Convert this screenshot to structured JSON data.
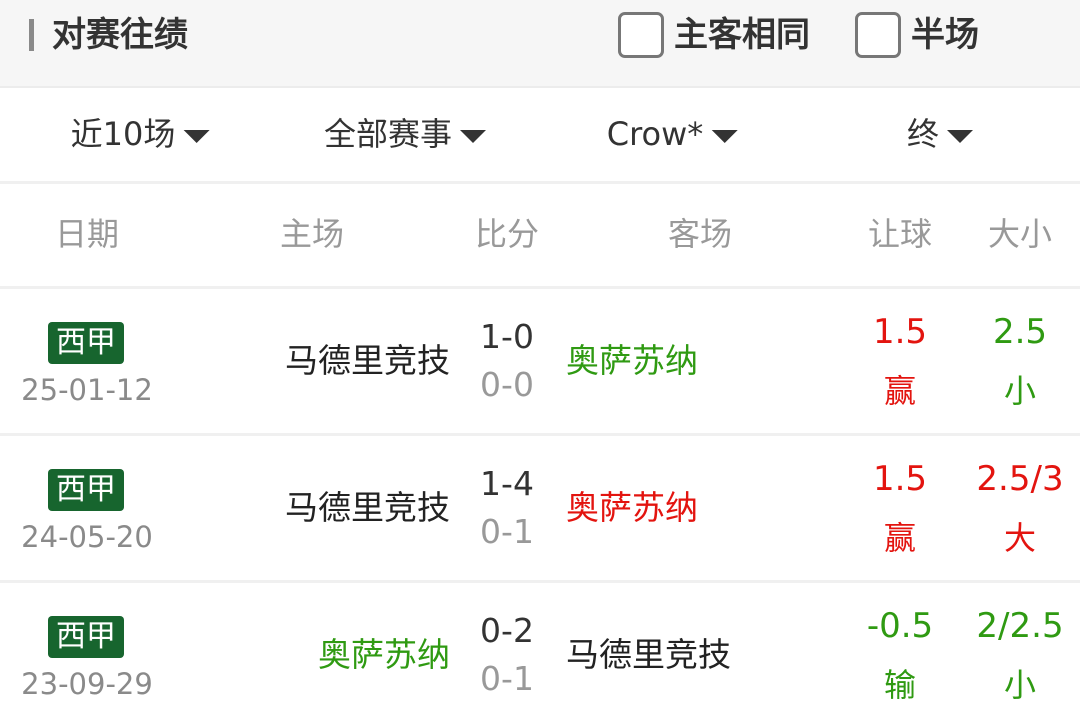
{
  "header": {
    "title": "对赛往绩",
    "options": [
      "主客相同",
      "半场"
    ]
  },
  "filters": [
    "近10场",
    "全部赛事",
    "Crow*",
    "终"
  ],
  "columns": [
    "日期",
    "主场",
    "比分",
    "客场",
    "让球",
    "大小"
  ],
  "colors": {
    "green": "#2f9a12",
    "red": "#e3140f",
    "black": "#222222",
    "badge": "#17652e"
  },
  "rows": [
    {
      "league": "西甲",
      "date": "25-01-12",
      "home": "马德里竞技",
      "home_color": "black",
      "score": "1-0",
      "half": "0-0",
      "away": "奥萨苏纳",
      "away_color": "green",
      "handicap": "1.5",
      "handicap_result": "赢",
      "handicap_color": "red",
      "total": "2.5",
      "total_result": "小",
      "total_color": "green"
    },
    {
      "league": "西甲",
      "date": "24-05-20",
      "home": "马德里竞技",
      "home_color": "black",
      "score": "1-4",
      "half": "0-1",
      "away": "奥萨苏纳",
      "away_color": "red",
      "handicap": "1.5",
      "handicap_result": "赢",
      "handicap_color": "red",
      "total": "2.5/3",
      "total_result": "大",
      "total_color": "red"
    },
    {
      "league": "西甲",
      "date": "23-09-29",
      "home": "奥萨苏纳",
      "home_color": "green",
      "score": "0-2",
      "half": "0-1",
      "away": "马德里竞技",
      "away_color": "black",
      "handicap": "-0.5",
      "handicap_result": "输",
      "handicap_color": "green",
      "total": "2/2.5",
      "total_result": "小",
      "total_color": "green"
    }
  ]
}
